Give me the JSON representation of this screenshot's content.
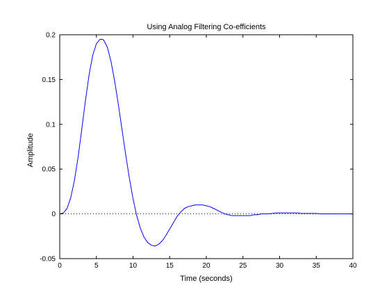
{
  "chart_data": {
    "type": "line",
    "title": "Using Analog Filtering Co-efficients",
    "xlabel": "Time (seconds)",
    "ylabel": "Amplitude",
    "xlim": [
      0,
      40
    ],
    "ylim": [
      -0.05,
      0.2
    ],
    "xticks": [
      "0",
      "5",
      "10",
      "15",
      "20",
      "25",
      "30",
      "35",
      "40"
    ],
    "yticks": [
      "-0.05",
      "0",
      "0.05",
      "0.1",
      "0.15",
      "0.2"
    ],
    "grid": false,
    "legend": "none",
    "colors": {
      "series": "#0000ff",
      "baseline": "#000000",
      "axes": "#000000"
    },
    "baseline": {
      "y": 0,
      "style": "dotted"
    },
    "series": [
      {
        "x": [
          0,
          0.5,
          1,
          1.5,
          2,
          2.5,
          3,
          3.5,
          4,
          4.5,
          5,
          5.5,
          5.8,
          6,
          6.5,
          7,
          7.5,
          8,
          8.5,
          9,
          9.5,
          10,
          10.5,
          11,
          11.5,
          12,
          12.5,
          13,
          13.5,
          14,
          14.5,
          15,
          15.5,
          16,
          16.5,
          17,
          17.5,
          18,
          18.5,
          19,
          19.5,
          20,
          20.5,
          21,
          21.5,
          22,
          22.5,
          23,
          23.5,
          24,
          24.5,
          25,
          25.5,
          26,
          26.5,
          27,
          27.5,
          28,
          28.5,
          29,
          29.5,
          30,
          30.5,
          31,
          31.5,
          32,
          32.5,
          33,
          33.5,
          34,
          34.5,
          35,
          35.5,
          36,
          37,
          38,
          39,
          40
        ],
        "values": [
          0,
          0.001,
          0.006,
          0.018,
          0.037,
          0.063,
          0.094,
          0.126,
          0.155,
          0.177,
          0.19,
          0.195,
          0.195,
          0.194,
          0.186,
          0.17,
          0.148,
          0.122,
          0.094,
          0.066,
          0.04,
          0.017,
          -0.002,
          -0.016,
          -0.026,
          -0.032,
          -0.035,
          -0.036,
          -0.034,
          -0.03,
          -0.024,
          -0.017,
          -0.01,
          -0.003,
          0.002,
          0.006,
          0.008,
          0.009,
          0.01,
          0.01,
          0.01,
          0.009,
          0.008,
          0.006,
          0.004,
          0.002,
          0.0,
          -0.001,
          -0.002,
          -0.002,
          -0.002,
          -0.002,
          -0.002,
          -0.002,
          -0.001,
          -0.001,
          0.0,
          0.0,
          0.0,
          0.0005,
          0.001,
          0.001,
          0.001,
          0.001,
          0.001,
          0.001,
          0.001,
          0.0005,
          0.0005,
          0.0005,
          0.0005,
          0.0005,
          0,
          0,
          0,
          0,
          0,
          0
        ]
      }
    ]
  }
}
